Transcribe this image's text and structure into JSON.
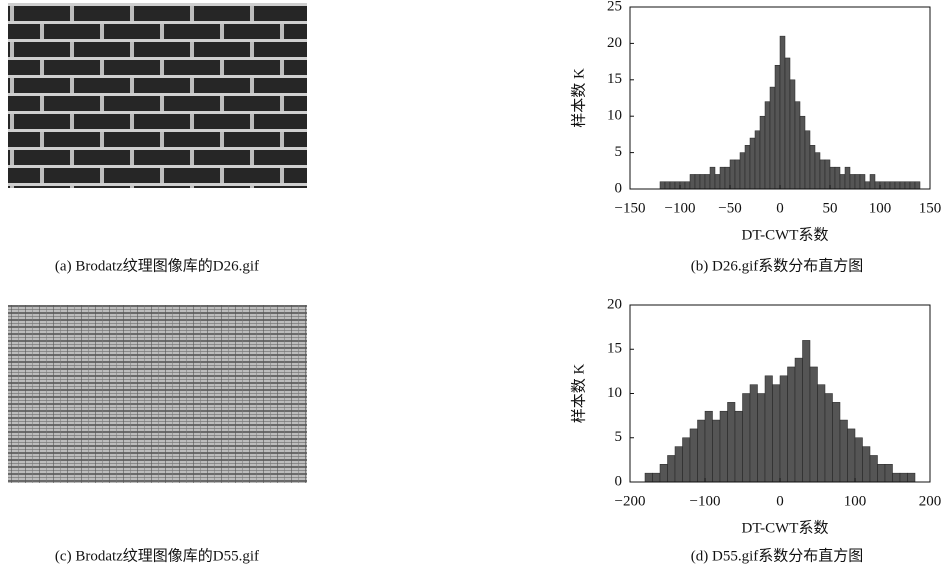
{
  "panels": [
    {
      "caption": "(a) Brodatz纹理图像库的D26.gif"
    },
    {
      "caption": "(c) Brodatz纹理图像库的D55.gif"
    }
  ],
  "chart_data": [
    {
      "type": "histogram",
      "caption": "(b) D26.gif系数分布直方图",
      "xlabel": "DT-CWT系数",
      "ylabel": "样本数 K",
      "color": "#555555",
      "bins": [
        -120,
        -115,
        -110,
        -105,
        -100,
        -95,
        -90,
        -85,
        -80,
        -75,
        -70,
        -65,
        -60,
        -55,
        -50,
        -45,
        -40,
        -35,
        -30,
        -25,
        -20,
        -15,
        -10,
        -5,
        0,
        5,
        10,
        15,
        20,
        25,
        30,
        35,
        40,
        45,
        50,
        55,
        60,
        65,
        70,
        75,
        80,
        85,
        90,
        95,
        100,
        105,
        110,
        115,
        120,
        125,
        130,
        135,
        140
      ],
      "values": [
        1,
        1,
        1,
        1,
        1,
        1,
        2,
        2,
        2,
        2,
        3,
        2,
        3,
        3,
        4,
        4,
        5,
        6,
        7,
        8,
        10,
        12,
        14,
        17,
        21,
        18,
        15,
        12,
        10,
        8,
        6,
        5,
        4,
        4,
        3,
        3,
        2,
        3,
        2,
        2,
        2,
        1,
        2,
        1,
        1,
        1,
        1,
        1,
        1,
        1,
        1,
        1
      ],
      "xlim": [
        -150,
        150
      ],
      "ylim": [
        0,
        25
      ],
      "xticks": [
        {
          "value": -150,
          "label": "−150"
        },
        {
          "value": -100,
          "label": "−100"
        },
        {
          "value": -50,
          "label": "−50"
        },
        0,
        50,
        100,
        150
      ],
      "yticks": [
        0,
        5,
        10,
        15,
        20,
        25
      ]
    },
    {
      "type": "histogram",
      "caption": "(d) D55.gif系数分布直方图",
      "xlabel": "DT-CWT系数",
      "ylabel": "样本数 K",
      "color": "#555555",
      "bins": [
        -180,
        -170,
        -160,
        -150,
        -140,
        -130,
        -120,
        -110,
        -100,
        -90,
        -80,
        -70,
        -60,
        -50,
        -40,
        -30,
        -20,
        -10,
        0,
        10,
        20,
        30,
        40,
        50,
        60,
        70,
        80,
        90,
        100,
        110,
        120,
        130,
        140,
        150,
        160,
        170,
        180
      ],
      "values": [
        1,
        1,
        2,
        3,
        4,
        5,
        6,
        7,
        8,
        7,
        8,
        9,
        8,
        10,
        11,
        10,
        12,
        11,
        12,
        13,
        14,
        16,
        13,
        11,
        10,
        9,
        7,
        6,
        5,
        4,
        3,
        2,
        2,
        1,
        1,
        1
      ],
      "xlim": [
        -200,
        200
      ],
      "ylim": [
        0,
        20
      ],
      "xticks": [
        {
          "value": -200,
          "label": "−200"
        },
        {
          "value": -100,
          "label": "−100"
        },
        0,
        100,
        200
      ],
      "yticks": [
        0,
        5,
        10,
        15,
        20
      ]
    }
  ]
}
